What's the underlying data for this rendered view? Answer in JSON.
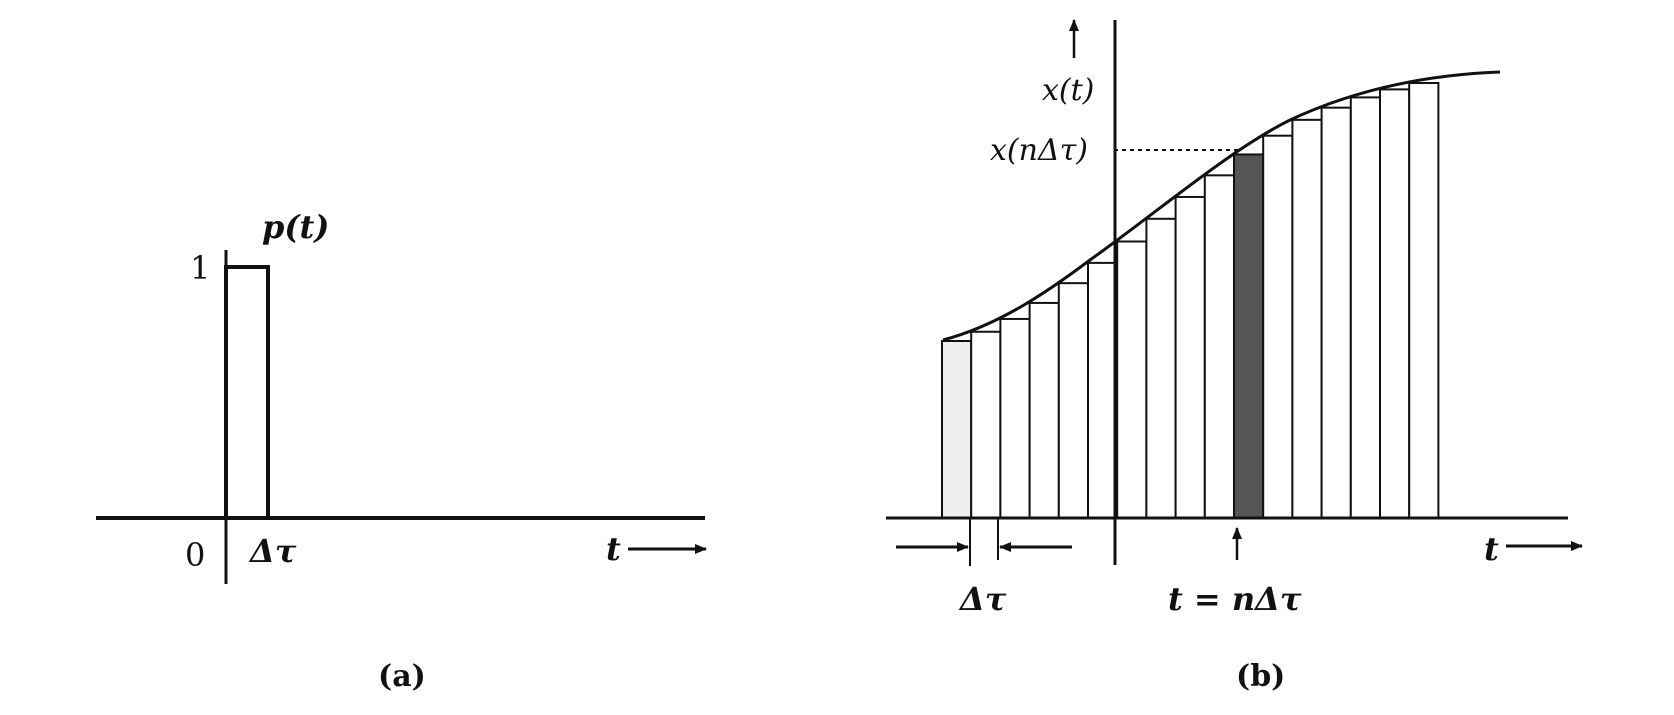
{
  "figure_a": {
    "pulse_label": "p(t)",
    "height_label": "1",
    "origin_label": "0",
    "width_label": "Δτ",
    "axis_label": "t",
    "caption": "(a)"
  },
  "figure_b": {
    "y_axis_label": "x(t)",
    "sample_value_label": "x(nΔτ)",
    "step_label": "Δτ",
    "sample_time_label": "t = nΔτ",
    "axis_label": "t",
    "caption": "(b)"
  },
  "colors": {
    "ink": "#111111",
    "highlight_strip": "#555555",
    "first_strip_fill": "#eeeeee",
    "background": "#ffffff"
  }
}
